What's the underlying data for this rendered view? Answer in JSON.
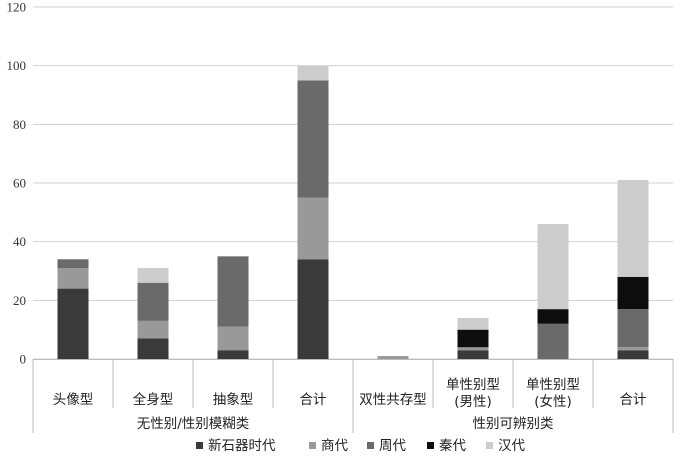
{
  "chart_data": {
    "type": "bar",
    "stacked": true,
    "ylim": [
      0,
      120
    ],
    "yticks": [
      0,
      20,
      40,
      60,
      80,
      100,
      120
    ],
    "grid": true,
    "legend_position": "bottom",
    "groups": [
      {
        "label": "无性别/性别模糊类",
        "categories": [
          "头像型",
          "全身型",
          "抽象型",
          "合计"
        ]
      },
      {
        "label": "性别可辨别类",
        "categories": [
          "双性共存型",
          "单性别型\n(男性)",
          "单性别型\n(女性)",
          "合计"
        ]
      }
    ],
    "categories": [
      "头像型",
      "全身型",
      "抽象型",
      "合计",
      "双性共存型",
      "单性别型(男性)",
      "单性别型(女性)",
      "合计"
    ],
    "series": [
      {
        "name": "新石器时代",
        "color": "#3a3a3a",
        "values": [
          24,
          7,
          3,
          34,
          0,
          3,
          0,
          3
        ]
      },
      {
        "name": "商代",
        "color": "#999999",
        "values": [
          7,
          6,
          8,
          21,
          1,
          1,
          0,
          1
        ]
      },
      {
        "name": "周代",
        "color": "#6a6a6a",
        "values": [
          3,
          13,
          24,
          40,
          0,
          0,
          12,
          13
        ]
      },
      {
        "name": "秦代",
        "color": "#0d0d0d",
        "values": [
          0,
          0,
          0,
          0,
          0,
          6,
          5,
          11
        ]
      },
      {
        "name": "汉代",
        "color": "#cccccc",
        "values": [
          0,
          5,
          0,
          5,
          0,
          4,
          29,
          33
        ]
      }
    ]
  }
}
